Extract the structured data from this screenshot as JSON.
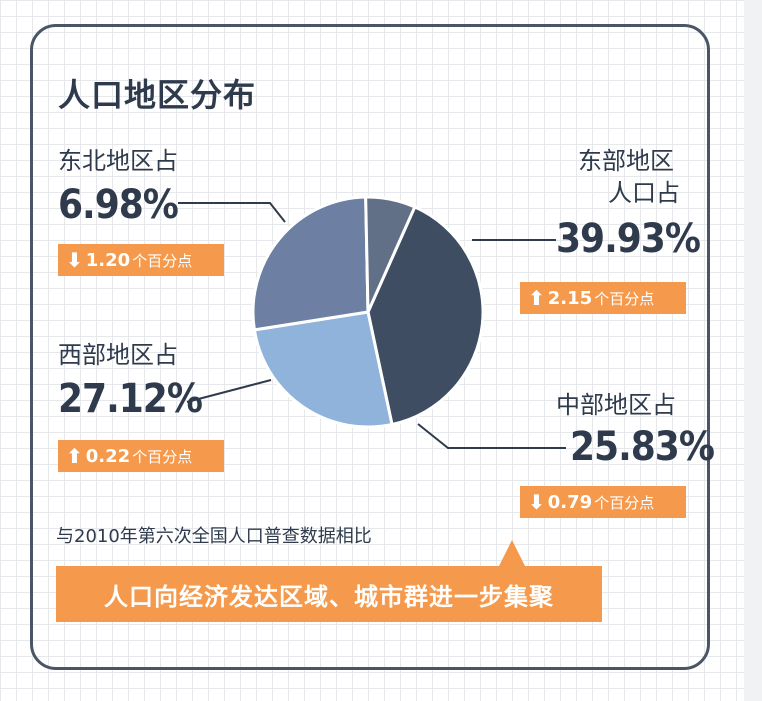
{
  "title": "人口地区分布",
  "colors": {
    "accent": "#f59a4c",
    "text": "#2f3b4c"
  },
  "regions": {
    "northeast": {
      "label": "东北地区占",
      "value": "6.98%",
      "change": "1.20",
      "unit": "个百分点",
      "direction": "down",
      "direction_icon": "arrow-down-icon"
    },
    "east": {
      "label_line1": "东部地区",
      "label_line2": "人口占",
      "value": "39.93%",
      "change": "2.15",
      "unit": "个百分点",
      "direction": "up",
      "direction_icon": "arrow-up-icon"
    },
    "west": {
      "label": "西部地区占",
      "value": "27.12%",
      "change": "0.22",
      "unit": "个百分点",
      "direction": "up",
      "direction_icon": "arrow-up-icon"
    },
    "central": {
      "label": "中部地区占",
      "value": "25.83%",
      "change": "0.79",
      "unit": "个百分点",
      "direction": "down",
      "direction_icon": "arrow-down-icon"
    }
  },
  "note": "与2010年第六次全国人口普查数据相比",
  "banner": "人口向经济发达区域、城市群进一步集聚",
  "chart_data": {
    "type": "pie",
    "title": "人口地区分布",
    "slices": [
      {
        "label": "东部地区",
        "value": 39.93,
        "color": "#3e4d62"
      },
      {
        "label": "中部地区",
        "value": 25.83,
        "color": "#90b3db"
      },
      {
        "label": "西部地区",
        "value": 27.12,
        "color": "#6d80a3"
      },
      {
        "label": "东北地区",
        "value": 6.98,
        "color": "#616f87"
      }
    ],
    "changes_vs_2010": [
      {
        "label": "东部地区",
        "value": 2.15
      },
      {
        "label": "中部地区",
        "value": -0.79
      },
      {
        "label": "西部地区",
        "value": 0.22
      },
      {
        "label": "东北地区",
        "value": -1.2
      }
    ]
  }
}
